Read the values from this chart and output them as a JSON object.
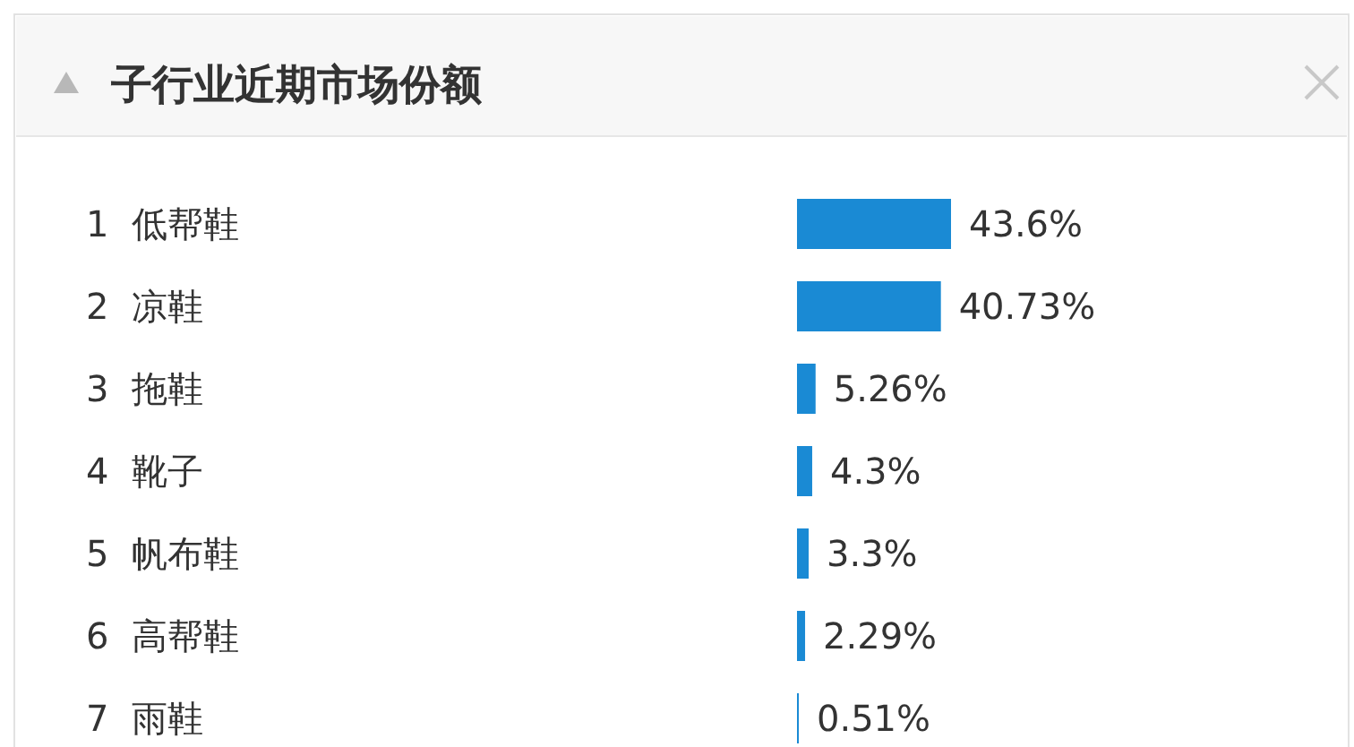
{
  "chart_data": {
    "type": "bar",
    "orientation": "horizontal",
    "title": "子行业近期市场份额",
    "categories": [
      "1  低帮鞋",
      "2  凉鞋",
      "3  拖鞋",
      "4  靴子",
      "5  帆布鞋",
      "6  高帮鞋",
      "7  雨鞋"
    ],
    "values": [
      43.6,
      40.73,
      5.26,
      4.3,
      3.3,
      2.29,
      0.51
    ],
    "value_labels": [
      "43.6%",
      "40.73%",
      "5.26%",
      "4.3%",
      "3.3%",
      "2.29%",
      "0.51%"
    ],
    "color": "#1a8ad4"
  }
}
